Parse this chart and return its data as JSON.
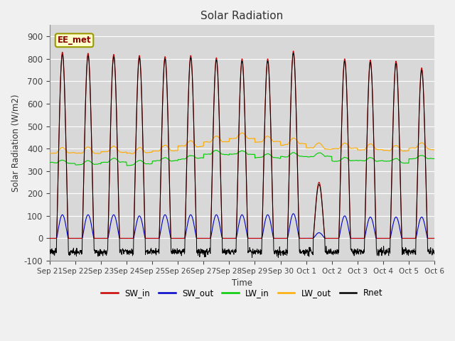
{
  "title": "Solar Radiation",
  "ylabel": "Solar Radiation (W/m2)",
  "xlabel": "Time",
  "ylim": [
    -100,
    950
  ],
  "yticks": [
    -100,
    0,
    100,
    200,
    300,
    400,
    500,
    600,
    700,
    800,
    900
  ],
  "plot_bg_color": "#d8d8d8",
  "fig_bg_color": "#f0f0f0",
  "colors": {
    "SW_in": "#cc0000",
    "SW_out": "#0000cc",
    "LW_in": "#00cc00",
    "LW_out": "#ffaa00",
    "Rnet": "#000000"
  },
  "annotation_label": "EE_met",
  "annotation_bg": "#ffffcc",
  "annotation_border": "#999900",
  "x_tick_labels": [
    "Sep 21",
    "Sep 22",
    "Sep 23",
    "Sep 24",
    "Sep 25",
    "Sep 26",
    "Sep 27",
    "Sep 28",
    "Sep 29",
    "Sep 30",
    "Oct 1",
    "Oct 2",
    "Oct 3",
    "Oct 4",
    "Oct 5",
    "Oct 6"
  ],
  "n_days": 15,
  "points_per_day": 96,
  "SW_in_peaks": [
    830,
    825,
    820,
    815,
    810,
    815,
    805,
    800,
    800,
    835,
    250,
    800,
    795,
    790,
    760
  ],
  "SW_out_peaks": [
    105,
    105,
    105,
    100,
    105,
    105,
    105,
    105,
    105,
    110,
    25,
    100,
    95,
    95,
    95
  ],
  "LW_in_base": [
    335,
    330,
    340,
    330,
    345,
    355,
    375,
    375,
    360,
    365,
    365,
    345,
    345,
    340,
    355
  ],
  "LW_out_base": [
    380,
    380,
    385,
    380,
    390,
    410,
    430,
    445,
    430,
    420,
    400,
    400,
    395,
    390,
    400
  ],
  "Rnet_night": -60,
  "legend_entries": [
    "SW_in",
    "SW_out",
    "LW_in",
    "LW_out",
    "Rnet"
  ]
}
